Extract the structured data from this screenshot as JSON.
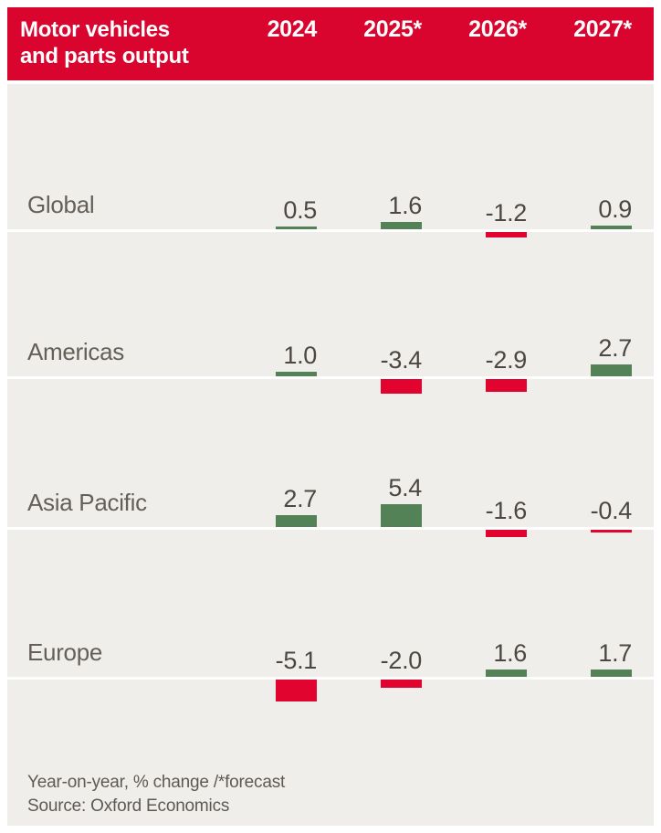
{
  "header": {
    "title_line1": "Motor vehicles",
    "title_line2": "and parts output"
  },
  "chart_data": {
    "type": "bar",
    "title": "Motor vehicles and parts output",
    "subtitle": "Year-on-year, % change /*forecast",
    "categories": [
      "2024",
      "2025*",
      "2026*",
      "2027*"
    ],
    "series": [
      {
        "name": "Global",
        "values": [
          0.5,
          1.6,
          -1.2,
          0.9
        ]
      },
      {
        "name": "Americas",
        "values": [
          1.0,
          -3.4,
          -2.9,
          2.7
        ]
      },
      {
        "name": "Asia Pacific",
        "values": [
          2.7,
          5.4,
          -1.6,
          -0.4
        ]
      },
      {
        "name": "Europe",
        "values": [
          -5.1,
          -2.0,
          1.6,
          1.7
        ]
      }
    ],
    "value_decimals": 1,
    "ylim": [
      -5.4,
      5.4
    ],
    "grid": false,
    "legend_position": "none",
    "positive_color": "#538257",
    "negative_color": "#e0042e",
    "baseline_color": "#ffffff"
  },
  "footer": {
    "note": "Year-on-year, % change /*forecast",
    "source": "Source: Oxford Economics"
  },
  "colors": {
    "page_background": "#ffffff",
    "header_background": "#d9052e",
    "header_text": "#ffffff",
    "body_background": "#f0eeea",
    "row_label_text": "#655f5a",
    "value_text": "#4c4742",
    "footer_text": "#5f5955"
  }
}
